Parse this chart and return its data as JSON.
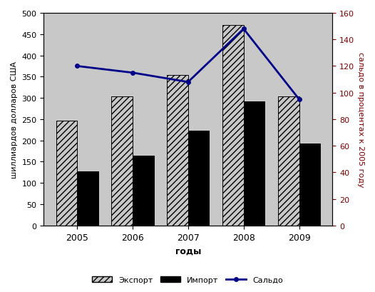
{
  "years": [
    2005,
    2006,
    2007,
    2008,
    2009
  ],
  "export": [
    247,
    304,
    354,
    472,
    304
  ],
  "import_": [
    128,
    165,
    223,
    292,
    192
  ],
  "saldo": [
    120,
    115,
    108,
    148,
    95
  ],
  "ylim_left": [
    0,
    500
  ],
  "ylim_right": [
    0,
    160
  ],
  "yticks_left": [
    0,
    50,
    100,
    150,
    200,
    250,
    300,
    350,
    400,
    450,
    500
  ],
  "yticks_right": [
    0,
    20,
    40,
    60,
    80,
    100,
    120,
    140,
    160
  ],
  "xlabel": "годы",
  "ylabel_left": "шиллиардов долларов США",
  "ylabel_right": "сальдо в процентах к 2005 году",
  "legend_export": "Экспорт",
  "legend_import": "Импорт",
  "legend_saldo": "Сальдо",
  "bar_width": 0.38,
  "export_hatch": "////",
  "export_facecolor": "#c8c8c8",
  "export_edgecolor": "#000000",
  "import_facecolor": "#000000",
  "import_edgecolor": "#000000",
  "saldo_color": "#00008B",
  "bg_color": "#c8c8c8",
  "left_label_color": "#000000",
  "right_label_color": "#800000",
  "tick_color_left": "#000000",
  "tick_color_right": "#800000",
  "right_yticklabel_color": "#800000"
}
